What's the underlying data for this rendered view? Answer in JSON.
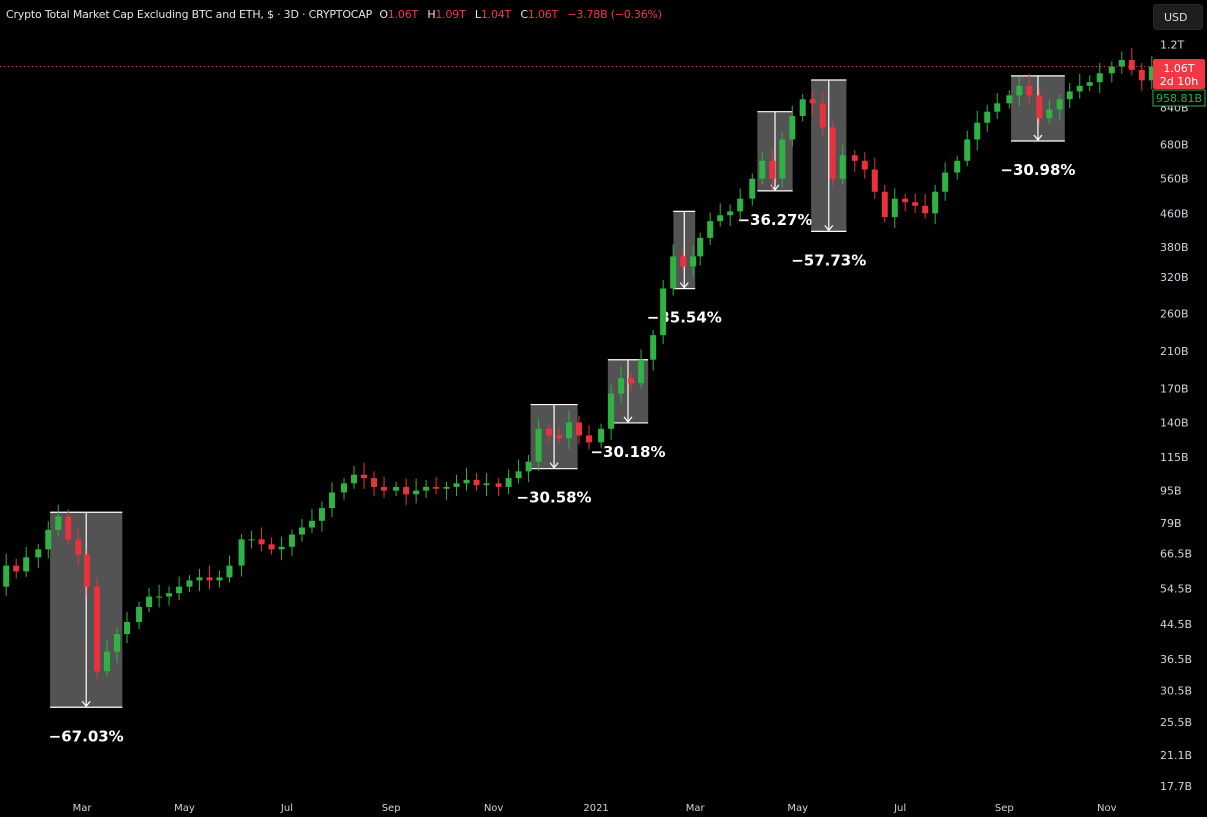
{
  "header": {
    "title": "Crypto Total Market Cap Excluding BTC and ETH, $ · 3D · CRYPTOCAP",
    "o_label": "O",
    "o": "1.06T",
    "h_label": "H",
    "h": "1.09T",
    "l_label": "L",
    "l": "1.04T",
    "c_label": "C",
    "c": "1.06T",
    "change": "−3.78B (−0.36%)"
  },
  "currency_button": "USD",
  "price_labels": {
    "last_price": "1.06T",
    "countdown": "2d 10h",
    "secondary_price": "958.81B"
  },
  "colors": {
    "up": "#2fb344",
    "down": "#e8323e",
    "box": "#6f6f6f",
    "price_line": "#e8323e"
  },
  "chart_data": {
    "type": "candlestick",
    "interval": "3D",
    "y_scale": "log",
    "grid": false,
    "y_ticks": [
      {
        "label": "1.2T",
        "value": 1200
      },
      {
        "label": "840B",
        "value": 840
      },
      {
        "label": "680B",
        "value": 680
      },
      {
        "label": "560B",
        "value": 560
      },
      {
        "label": "460B",
        "value": 460
      },
      {
        "label": "380B",
        "value": 380
      },
      {
        "label": "320B",
        "value": 320
      },
      {
        "label": "260B",
        "value": 260
      },
      {
        "label": "210B",
        "value": 210
      },
      {
        "label": "170B",
        "value": 170
      },
      {
        "label": "140B",
        "value": 140
      },
      {
        "label": "115B",
        "value": 115
      },
      {
        "label": "95B",
        "value": 95
      },
      {
        "label": "79B",
        "value": 79
      },
      {
        "label": "66.5B",
        "value": 66.5
      },
      {
        "label": "54.5B",
        "value": 54.5
      },
      {
        "label": "44.5B",
        "value": 44.5
      },
      {
        "label": "36.5B",
        "value": 36.5
      },
      {
        "label": "30.5B",
        "value": 30.5
      },
      {
        "label": "25.5B",
        "value": 25.5
      },
      {
        "label": "21.1B",
        "value": 21.1
      },
      {
        "label": "17.7B",
        "value": 17.7
      }
    ],
    "x_ticks": [
      {
        "label": "Mar",
        "date": "2020-03-01"
      },
      {
        "label": "May",
        "date": "2020-05-01"
      },
      {
        "label": "Jul",
        "date": "2020-07-01"
      },
      {
        "label": "Sep",
        "date": "2020-09-01"
      },
      {
        "label": "Nov",
        "date": "2020-11-01"
      },
      {
        "label": "2021",
        "date": "2021-01-01"
      },
      {
        "label": "Mar",
        "date": "2021-03-01"
      },
      {
        "label": "May",
        "date": "2021-05-01"
      },
      {
        "label": "Jul",
        "date": "2021-07-01"
      },
      {
        "label": "Sep",
        "date": "2021-09-01"
      },
      {
        "label": "Nov",
        "date": "2021-11-01"
      }
    ],
    "closes_billions_by_month": {
      "2020-01": [
        52,
        55,
        62,
        60,
        65
      ],
      "2020-02": [
        68,
        76,
        82,
        72,
        66
      ],
      "2020-03": [
        55,
        34,
        38,
        42,
        45
      ],
      "2020-04": [
        49,
        52,
        52,
        53,
        55
      ],
      "2020-05": [
        57,
        58,
        57,
        58,
        62
      ],
      "2020-06": [
        72,
        72,
        70,
        68,
        69
      ],
      "2020-07": [
        74,
        77,
        80,
        86,
        94
      ],
      "2020-08": [
        99,
        104,
        102,
        97,
        95
      ],
      "2020-09": [
        97,
        93,
        95,
        97,
        96
      ],
      "2020-10": [
        97,
        99,
        101,
        98,
        99
      ],
      "2020-11": [
        97,
        102,
        106,
        112,
        135
      ],
      "2020-12": [
        130,
        128,
        140,
        130,
        125
      ],
      "2021-01": [
        135,
        165,
        180,
        175,
        200
      ],
      "2021-02": [
        230,
        300,
        360,
        340,
        360
      ],
      "2021-03": [
        400,
        440,
        455,
        465,
        500
      ],
      "2021-04": [
        560,
        620,
        560,
        700,
        800
      ],
      "2021-05": [
        880,
        860,
        750,
        560,
        640
      ],
      "2021-06": [
        620,
        590,
        520,
        450,
        500
      ],
      "2021-07": [
        490,
        480,
        460,
        520,
        580
      ],
      "2021-08": [
        620,
        700,
        770,
        820,
        860
      ],
      "2021-09": [
        900,
        950,
        900,
        790,
        830
      ],
      "2021-10": [
        880,
        920,
        950,
        970,
        1020
      ],
      "2021-11": [
        1060,
        1100,
        1040,
        980,
        1060
      ]
    },
    "last_price_billions": 1060,
    "drawdowns": [
      {
        "label": "−67.03%",
        "start": "2020-02-11",
        "end": "2020-03-25",
        "high": 84,
        "low": 27.7
      },
      {
        "label": "−30.58%",
        "start": "2020-11-23",
        "end": "2020-12-21",
        "high": 155,
        "low": 107.6
      },
      {
        "label": "−30.18%",
        "start": "2021-01-08",
        "end": "2021-02-01",
        "high": 200,
        "low": 139.6
      },
      {
        "label": "−35.54%",
        "start": "2021-02-16",
        "end": "2021-03-01",
        "high": 465,
        "low": 299.7
      },
      {
        "label": "−36.27%",
        "start": "2021-04-07",
        "end": "2021-04-28",
        "high": 820,
        "low": 522.6
      },
      {
        "label": "−57.73%",
        "start": "2021-05-09",
        "end": "2021-05-30",
        "high": 982,
        "low": 415
      },
      {
        "label": "−30.98%",
        "start": "2021-09-05",
        "end": "2021-10-07",
        "high": 1005,
        "low": 694
      }
    ]
  }
}
